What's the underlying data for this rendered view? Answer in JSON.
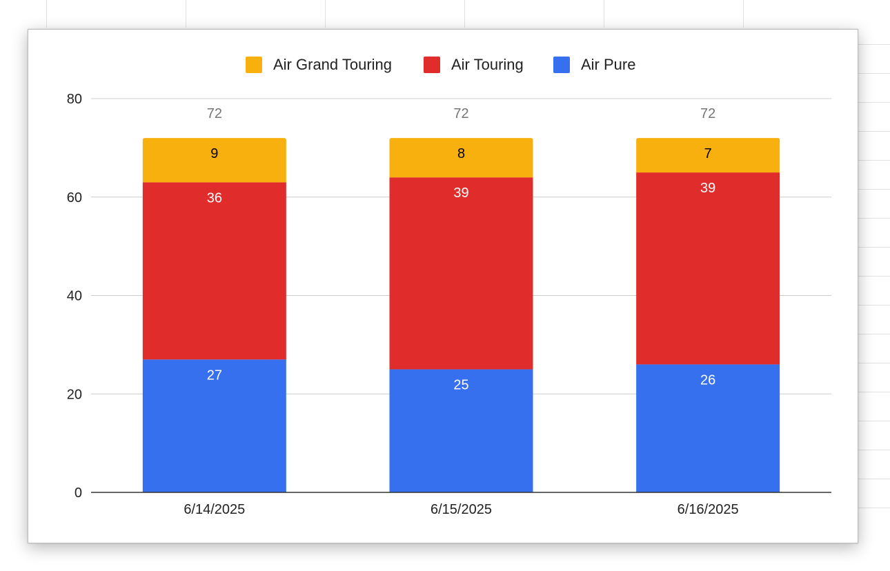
{
  "chart_data": {
    "type": "bar",
    "stacked": true,
    "categories": [
      "6/14/2025",
      "6/15/2025",
      "6/16/2025"
    ],
    "series": [
      {
        "name": "Air Pure",
        "color": "#3770ef",
        "values": [
          27,
          25,
          26
        ],
        "label_color": "#ffffff"
      },
      {
        "name": "Air Touring",
        "color": "#e02d2b",
        "values": [
          36,
          39,
          39
        ],
        "label_color": "#ffffff"
      },
      {
        "name": "Air Grand Touring",
        "color": "#f8b00f",
        "values": [
          9,
          8,
          7
        ],
        "label_color": "#000000"
      }
    ],
    "totals": [
      72,
      72,
      72
    ],
    "legend_order": [
      "Air Grand Touring",
      "Air Touring",
      "Air Pure"
    ],
    "legend_position": "top",
    "ylim": [
      0,
      80
    ],
    "yticks": [
      0,
      20,
      40,
      60,
      80
    ],
    "grid": true,
    "title": "",
    "xlabel": "",
    "ylabel": ""
  }
}
